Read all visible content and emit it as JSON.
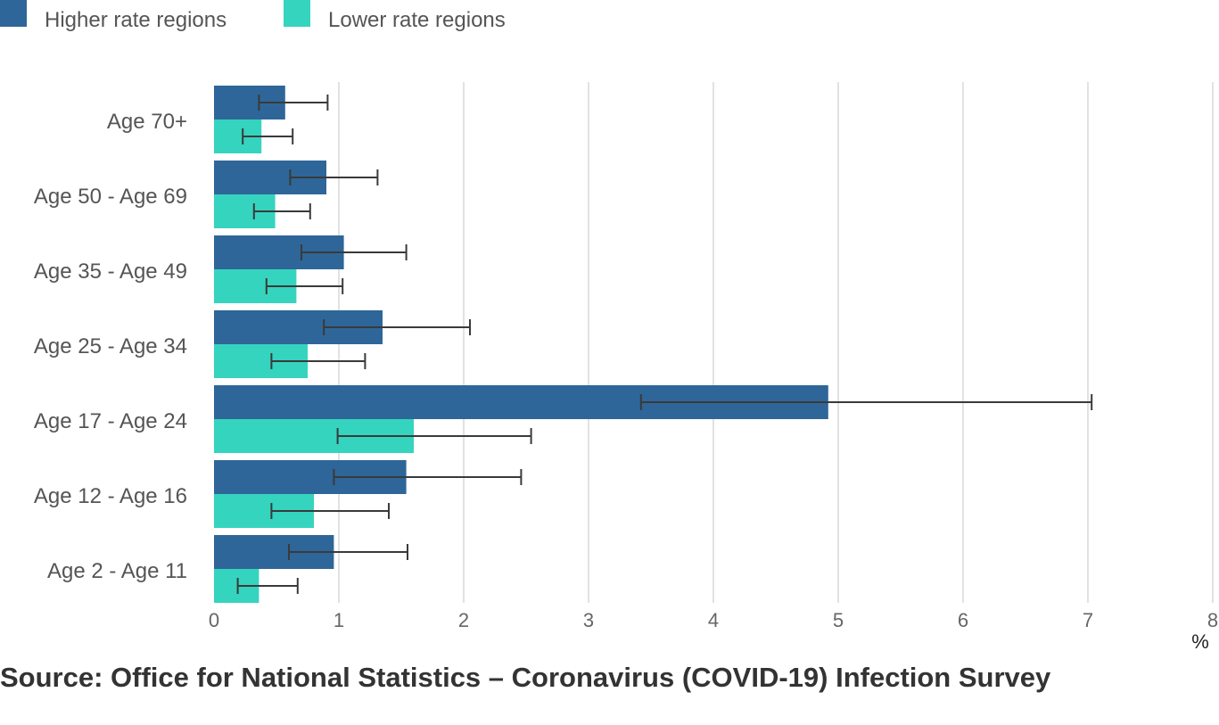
{
  "chart_data": {
    "type": "bar",
    "orientation": "horizontal",
    "categories": [
      "Age 70+",
      "Age 50 - Age 69",
      "Age 35 - Age 49",
      "Age 25 - Age 34",
      "Age 17 - Age 24",
      "Age 12 - Age 16",
      "Age 2 - Age 11"
    ],
    "series": [
      {
        "name": "Higher rate regions",
        "color": "#2e6699",
        "values": [
          0.57,
          0.9,
          1.04,
          1.35,
          4.92,
          1.54,
          0.96
        ],
        "ci_low": [
          0.36,
          0.61,
          0.7,
          0.88,
          3.42,
          0.96,
          0.6
        ],
        "ci_high": [
          0.91,
          1.31,
          1.54,
          2.05,
          7.03,
          2.46,
          1.55
        ]
      },
      {
        "name": "Lower rate regions",
        "color": "#35d4bf",
        "values": [
          0.38,
          0.49,
          0.66,
          0.75,
          1.6,
          0.8,
          0.36
        ],
        "ci_low": [
          0.23,
          0.32,
          0.42,
          0.46,
          0.99,
          0.46,
          0.19
        ],
        "ci_high": [
          0.63,
          0.77,
          1.03,
          1.21,
          2.54,
          1.4,
          0.67
        ]
      }
    ],
    "xlim": [
      0,
      8
    ],
    "xticks": [
      "0",
      "1",
      "2",
      "3",
      "4",
      "5",
      "6",
      "7",
      "8"
    ],
    "xunit": "%",
    "grid": true,
    "legend_position": "top-left"
  },
  "source": "Source: Office for National Statistics – Coronavirus (COVID-19) Infection Survey"
}
